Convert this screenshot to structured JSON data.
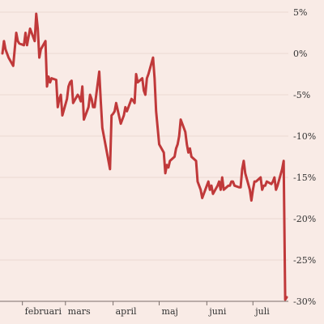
{
  "chart_data": {
    "type": "line",
    "title": "",
    "xlabel": "",
    "ylabel": "",
    "x_tick_labels": [
      "februari",
      "mars",
      "april",
      "maj",
      "juni",
      "juli"
    ],
    "y_ticks": [
      5,
      0,
      -5,
      -10,
      -15,
      -20,
      -25,
      -30
    ],
    "y_tick_labels": [
      "5%",
      "0%",
      "-5%",
      "-10%",
      "-15%",
      "-20%",
      "-25%",
      "-30%"
    ],
    "ylim": [
      -30,
      5
    ],
    "grid": true,
    "colors": {
      "line": "#c0393a",
      "background": "#f9ebe6",
      "grid": "#ead8d2"
    },
    "series": [
      {
        "x": [
          "01-19",
          "01-20",
          "01-21",
          "01-22",
          "01-23",
          "01-26",
          "01-27",
          "01-28",
          "01-29",
          "01-30",
          "02-02",
          "02-03",
          "02-04",
          "02-05",
          "02-06",
          "02-09",
          "02-10",
          "02-11",
          "02-12",
          "02-13",
          "02-16",
          "02-17",
          "02-18",
          "02-19",
          "02-20",
          "02-23",
          "02-24",
          "02-25",
          "02-26",
          "02-27",
          "03-02",
          "03-03",
          "03-04",
          "03-05",
          "03-06",
          "03-09",
          "03-10",
          "03-11",
          "03-12",
          "03-13",
          "03-16",
          "03-17",
          "03-18",
          "03-19",
          "03-20",
          "03-23",
          "03-24",
          "03-25",
          "03-26",
          "03-27",
          "03-30",
          "03-31",
          "04-01",
          "04-02",
          "04-03",
          "04-06",
          "04-07",
          "04-08",
          "04-09",
          "04-10",
          "04-13",
          "04-14",
          "04-15",
          "04-16",
          "04-17",
          "04-20",
          "04-21",
          "04-22",
          "04-23",
          "04-24",
          "04-27",
          "04-28",
          "04-29",
          "04-30",
          "05-01",
          "05-04",
          "05-05",
          "05-06",
          "05-07",
          "05-08",
          "05-11",
          "05-12",
          "05-13",
          "05-14",
          "05-15",
          "05-18",
          "05-19",
          "05-20",
          "05-21",
          "05-22",
          "05-25",
          "05-26",
          "05-27",
          "05-28",
          "05-29",
          "06-01",
          "06-02",
          "06-03",
          "06-04",
          "06-05",
          "06-08",
          "06-09",
          "06-10",
          "06-11",
          "06-12",
          "06-15",
          "06-16",
          "06-17",
          "06-18",
          "06-19",
          "06-22",
          "06-23",
          "06-24",
          "06-25",
          "06-26",
          "06-29",
          "06-30",
          "07-01",
          "07-02",
          "07-03",
          "07-06",
          "07-07",
          "07-08",
          "07-09",
          "07-10",
          "07-13",
          "07-14",
          "07-15",
          "07-16",
          "07-17",
          "07-20",
          "07-21",
          "07-22",
          "07-23"
        ],
        "values": [
          0,
          1.5,
          0.5,
          0,
          -0.5,
          -1.5,
          0.5,
          2.5,
          1.5,
          1.2,
          1,
          2.5,
          1,
          2,
          3,
          1.5,
          4.8,
          3,
          -0.5,
          0.5,
          1.5,
          -4,
          -2.8,
          -3.5,
          -3,
          -3.2,
          -6.5,
          -5.5,
          -5,
          -7.5,
          -5.5,
          -4,
          -3.5,
          -3.3,
          -6,
          -5,
          -5.3,
          -5.8,
          -4,
          -8,
          -6.5,
          -5,
          -5.5,
          -6.5,
          -6.5,
          -2.2,
          -5.8,
          -9,
          -10,
          -11,
          -14,
          -7.5,
          -7.3,
          -7,
          -6,
          -8.5,
          -8,
          -7.5,
          -6.5,
          -7,
          -5.5,
          -5.7,
          -6,
          -2.5,
          -3.5,
          -3,
          -4.5,
          -5,
          -3,
          -2.5,
          -0.5,
          -3,
          -7,
          -9,
          -11,
          -12,
          -14.5,
          -13.5,
          -13.8,
          -13,
          -12.5,
          -11.5,
          -11,
          -10,
          -8,
          -9.5,
          -11,
          -12,
          -11.5,
          -12.5,
          -13,
          -15.5,
          -16,
          -16.5,
          -17.5,
          -16,
          -15.5,
          -16.5,
          -16,
          -17,
          -16,
          -15.5,
          -16.5,
          -15,
          -16.5,
          -16,
          -16,
          -15.5,
          -15.5,
          -16,
          -16.2,
          -16.2,
          -14,
          -13,
          -14.5,
          -16.5,
          -17.8,
          -16.5,
          -15.5,
          -15.5,
          -15,
          -16.5,
          -16,
          -16,
          -15.5,
          -15.8,
          -15.5,
          -15,
          -16.5,
          -16,
          -14,
          -13,
          -29.8,
          -29.5
        ]
      }
    ]
  }
}
